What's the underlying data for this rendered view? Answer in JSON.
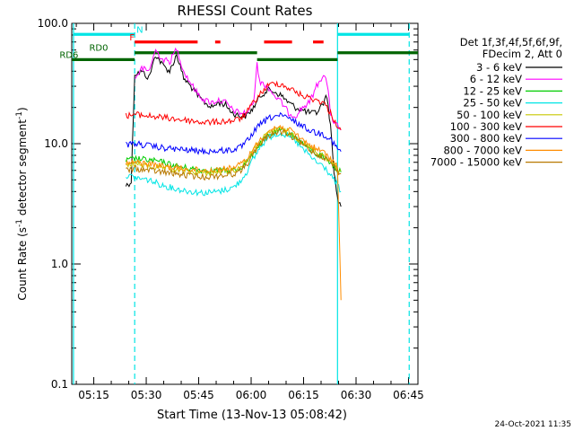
{
  "chart_data": {
    "type": "line",
    "title": "RHESSI Count Rates",
    "xlabel": "Start Time (13-Nov-13 05:08:42)",
    "ylabel_parts": [
      "Count Rate (s",
      "-1",
      " detector segment",
      "-1",
      ")"
    ],
    "y_scale": "log",
    "ylim": [
      0.1,
      100
    ],
    "y_ticks": [
      {
        "v": 0.1,
        "label": "0.1"
      },
      {
        "v": 1,
        "label": "1.0"
      },
      {
        "v": 10,
        "label": "10.0"
      },
      {
        "v": 100,
        "label": "100.0"
      }
    ],
    "x_unit": "minutes since 05:08:42",
    "xlim": [
      0,
      99
    ],
    "x_ticks": [
      {
        "v": 6.3,
        "label": "05:15"
      },
      {
        "v": 21.3,
        "label": "05:30"
      },
      {
        "v": 36.3,
        "label": "05:45"
      },
      {
        "v": 51.3,
        "label": "06:00"
      },
      {
        "v": 66.3,
        "label": "06:15"
      },
      {
        "v": 81.3,
        "label": "06:30"
      },
      {
        "v": 96.3,
        "label": "06:45"
      }
    ],
    "legend_header": [
      "Det 1f,3f,4f,5f,6f,9f,",
      "FDecim 2, Att 0"
    ],
    "series": [
      {
        "name": "3 - 6 keV",
        "color": "#000000",
        "points": [
          [
            15.5,
            4.5
          ],
          [
            17,
            4.8
          ],
          [
            18,
            38
          ],
          [
            20,
            40
          ],
          [
            22,
            35
          ],
          [
            24,
            55
          ],
          [
            26,
            45
          ],
          [
            28,
            40
          ],
          [
            30,
            55
          ],
          [
            32,
            35
          ],
          [
            34,
            30
          ],
          [
            36,
            25
          ],
          [
            38,
            22
          ],
          [
            40,
            20
          ],
          [
            42,
            22
          ],
          [
            44,
            21
          ],
          [
            46,
            18
          ],
          [
            48,
            17
          ],
          [
            50,
            17
          ],
          [
            52,
            20
          ],
          [
            54,
            25
          ],
          [
            56,
            28
          ],
          [
            58,
            27
          ],
          [
            60,
            25
          ],
          [
            62,
            22
          ],
          [
            64,
            20
          ],
          [
            66,
            19
          ],
          [
            68,
            18
          ],
          [
            70,
            18
          ],
          [
            72,
            22
          ],
          [
            73,
            25
          ],
          [
            74,
            14
          ],
          [
            75,
            6
          ],
          [
            76,
            3.5
          ],
          [
            77,
            3
          ]
        ]
      },
      {
        "name": "6 - 12 keV",
        "color": "#ff00ff",
        "points": [
          [
            18,
            35
          ],
          [
            20,
            42
          ],
          [
            22,
            40
          ],
          [
            24,
            60
          ],
          [
            26,
            50
          ],
          [
            28,
            48
          ],
          [
            30,
            62
          ],
          [
            32,
            40
          ],
          [
            34,
            32
          ],
          [
            36,
            26
          ],
          [
            38,
            23
          ],
          [
            40,
            22
          ],
          [
            42,
            23
          ],
          [
            44,
            22
          ],
          [
            46,
            19
          ],
          [
            48,
            18
          ],
          [
            50,
            18
          ],
          [
            52,
            22
          ],
          [
            53,
            45
          ],
          [
            54,
            32
          ],
          [
            56,
            30
          ],
          [
            58,
            25
          ],
          [
            60,
            22
          ],
          [
            62,
            18
          ],
          [
            64,
            17
          ],
          [
            66,
            20
          ],
          [
            68,
            22
          ],
          [
            70,
            30
          ],
          [
            72,
            38
          ],
          [
            73,
            32
          ],
          [
            74,
            18
          ],
          [
            75,
            15
          ],
          [
            76,
            14
          ],
          [
            77,
            13
          ]
        ]
      },
      {
        "name": "12 - 25 keV",
        "color": "#00cc00",
        "points": [
          [
            15.5,
            7.2
          ],
          [
            18,
            7.5
          ],
          [
            22,
            7.3
          ],
          [
            26,
            7
          ],
          [
            30,
            6.5
          ],
          [
            34,
            6.2
          ],
          [
            38,
            6
          ],
          [
            42,
            6
          ],
          [
            46,
            6
          ],
          [
            48,
            6.2
          ],
          [
            50,
            7
          ],
          [
            52,
            8.5
          ],
          [
            54,
            10
          ],
          [
            56,
            11.5
          ],
          [
            58,
            12.5
          ],
          [
            60,
            12.8
          ],
          [
            62,
            12.3
          ],
          [
            64,
            11.3
          ],
          [
            66,
            10
          ],
          [
            68,
            9
          ],
          [
            70,
            8.2
          ],
          [
            72,
            7.8
          ],
          [
            74,
            7
          ],
          [
            76,
            6
          ],
          [
            77,
            5.8
          ]
        ]
      },
      {
        "name": "25 - 50 keV",
        "color": "#00e5e5",
        "points": [
          [
            15.5,
            5.5
          ],
          [
            18,
            5.2
          ],
          [
            22,
            5
          ],
          [
            26,
            4.5
          ],
          [
            30,
            4.2
          ],
          [
            34,
            4
          ],
          [
            38,
            3.9
          ],
          [
            42,
            4
          ],
          [
            46,
            4.3
          ],
          [
            48,
            4.8
          ],
          [
            50,
            5.8
          ],
          [
            52,
            7.5
          ],
          [
            54,
            9.5
          ],
          [
            56,
            11
          ],
          [
            58,
            12
          ],
          [
            60,
            12.2
          ],
          [
            62,
            11.5
          ],
          [
            64,
            10.5
          ],
          [
            66,
            9
          ],
          [
            68,
            8
          ],
          [
            70,
            7
          ],
          [
            72,
            6.5
          ],
          [
            74,
            5.5
          ],
          [
            76,
            4.5
          ],
          [
            77,
            4
          ]
        ]
      },
      {
        "name": "50 - 100 keV",
        "color": "#c8c800",
        "points": [
          [
            15.5,
            6.5
          ],
          [
            18,
            6.8
          ],
          [
            22,
            6.5
          ],
          [
            26,
            6.2
          ],
          [
            30,
            6
          ],
          [
            34,
            5.8
          ],
          [
            38,
            5.7
          ],
          [
            42,
            5.8
          ],
          [
            46,
            6
          ],
          [
            48,
            6.3
          ],
          [
            50,
            7.2
          ],
          [
            52,
            8.8
          ],
          [
            54,
            10.5
          ],
          [
            56,
            12
          ],
          [
            58,
            13
          ],
          [
            60,
            13.2
          ],
          [
            62,
            12.5
          ],
          [
            64,
            11.5
          ],
          [
            66,
            10.2
          ],
          [
            68,
            9.3
          ],
          [
            70,
            8.5
          ],
          [
            72,
            8
          ],
          [
            74,
            7.2
          ],
          [
            76,
            6.2
          ],
          [
            77,
            6
          ]
        ]
      },
      {
        "name": "100 - 300 keV",
        "color": "#ff0000",
        "points": [
          [
            15.5,
            17
          ],
          [
            18,
            17.5
          ],
          [
            22,
            17
          ],
          [
            26,
            16.5
          ],
          [
            30,
            16
          ],
          [
            34,
            15.5
          ],
          [
            38,
            15
          ],
          [
            42,
            15.2
          ],
          [
            46,
            15.5
          ],
          [
            48,
            16
          ],
          [
            50,
            18
          ],
          [
            52,
            22
          ],
          [
            54,
            26
          ],
          [
            56,
            30
          ],
          [
            58,
            32
          ],
          [
            60,
            31
          ],
          [
            62,
            29
          ],
          [
            64,
            27
          ],
          [
            66,
            25
          ],
          [
            68,
            24
          ],
          [
            70,
            23
          ],
          [
            72,
            22
          ],
          [
            74,
            18
          ],
          [
            76,
            14
          ],
          [
            77,
            13
          ]
        ]
      },
      {
        "name": "300 - 800 keV",
        "color": "#0000ff",
        "points": [
          [
            15.5,
            9.8
          ],
          [
            18,
            10
          ],
          [
            22,
            9.6
          ],
          [
            26,
            9.2
          ],
          [
            30,
            9
          ],
          [
            34,
            8.8
          ],
          [
            38,
            8.6
          ],
          [
            42,
            8.7
          ],
          [
            46,
            8.9
          ],
          [
            48,
            9.2
          ],
          [
            50,
            10.3
          ],
          [
            52,
            12.5
          ],
          [
            54,
            14.5
          ],
          [
            56,
            16
          ],
          [
            58,
            17
          ],
          [
            60,
            17
          ],
          [
            62,
            16.2
          ],
          [
            64,
            15.2
          ],
          [
            66,
            14
          ],
          [
            68,
            13
          ],
          [
            70,
            12.3
          ],
          [
            72,
            12
          ],
          [
            74,
            11
          ],
          [
            76,
            9
          ],
          [
            77,
            8.6
          ]
        ]
      },
      {
        "name": "800 - 7000 keV",
        "color": "#ff8c00",
        "points": [
          [
            15.5,
            6.8
          ],
          [
            18,
            7
          ],
          [
            22,
            6.8
          ],
          [
            26,
            6.5
          ],
          [
            30,
            6.3
          ],
          [
            34,
            6.1
          ],
          [
            38,
            6
          ],
          [
            42,
            6.1
          ],
          [
            46,
            6.3
          ],
          [
            48,
            6.6
          ],
          [
            50,
            7.5
          ],
          [
            52,
            9
          ],
          [
            54,
            11
          ],
          [
            56,
            12.5
          ],
          [
            58,
            13.5
          ],
          [
            60,
            13.8
          ],
          [
            62,
            13
          ],
          [
            64,
            12
          ],
          [
            66,
            10.8
          ],
          [
            68,
            9.8
          ],
          [
            70,
            9
          ],
          [
            72,
            8.5
          ],
          [
            74,
            7.6
          ],
          [
            76,
            6.5
          ],
          [
            77,
            0.5
          ]
        ]
      },
      {
        "name": "7000 - 15000 keV",
        "color": "#b87800",
        "points": [
          [
            15.5,
            6
          ],
          [
            18,
            6.2
          ],
          [
            22,
            6
          ],
          [
            26,
            5.8
          ],
          [
            30,
            5.6
          ],
          [
            34,
            5.4
          ],
          [
            38,
            5.3
          ],
          [
            42,
            5.4
          ],
          [
            46,
            5.6
          ],
          [
            48,
            5.9
          ],
          [
            50,
            6.7
          ],
          [
            52,
            8.2
          ],
          [
            54,
            10
          ],
          [
            56,
            11.5
          ],
          [
            58,
            12.3
          ],
          [
            60,
            12.5
          ],
          [
            62,
            11.8
          ],
          [
            64,
            11
          ],
          [
            66,
            9.8
          ],
          [
            68,
            9
          ],
          [
            70,
            8.2
          ],
          [
            72,
            7.8
          ],
          [
            74,
            7
          ],
          [
            76,
            6
          ],
          [
            77,
            5.6
          ]
        ]
      }
    ],
    "vlines": [
      {
        "x": 0.5,
        "style": "solid"
      },
      {
        "x": 18,
        "style": "dashed"
      },
      {
        "x": 76,
        "style": "solid"
      },
      {
        "x": 96.5,
        "style": "dashed"
      }
    ],
    "flags": [
      {
        "label": "N",
        "color": "#00e5e5",
        "y": 81,
        "segments": [
          [
            0.5,
            18
          ]
        ],
        "label_x": 18.5
      },
      {
        "label": "N",
        "color": "#00e5e5",
        "y": 81,
        "segments": [
          [
            76,
            96.5
          ]
        ],
        "label_x": null
      },
      {
        "label": "F",
        "color": "#ff0000",
        "y": 70,
        "segments": [
          [
            18,
            36
          ],
          [
            41,
            42.5
          ],
          [
            55,
            63
          ],
          [
            69,
            72
          ]
        ],
        "label_x": 16.5
      },
      {
        "label": "RD0",
        "color": "#006400",
        "y": 57,
        "segments": [
          [
            18,
            53
          ]
        ],
        "label_x": 5
      },
      {
        "label": "",
        "color": "#006400",
        "y": 57,
        "segments": [
          [
            76,
            99
          ]
        ],
        "label_x": null
      },
      {
        "label": "RD6",
        "color": "#006400",
        "y": 50,
        "segments": [
          [
            0,
            18
          ]
        ],
        "label_x": -3.5
      },
      {
        "label": "",
        "color": "#006400",
        "y": 50,
        "segments": [
          [
            53,
            76
          ]
        ],
        "label_x": null
      }
    ],
    "grid": false
  },
  "footer_date": "24-Oct-2021 11:35"
}
